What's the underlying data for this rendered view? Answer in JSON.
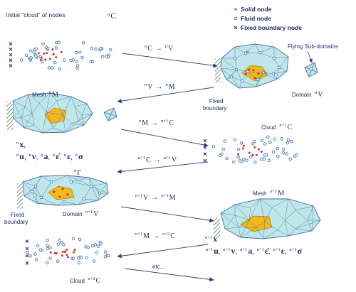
{
  "colors": {
    "background": "#ffffff",
    "fluid_node": "#4a78a8",
    "solid_node": "#c0392b",
    "fixed_node": "#33406a",
    "mesh_fill": "#bfe7ea",
    "mesh_edge": "#4a6fa0",
    "solid_fill": "#f2b81c",
    "arrow": "#2e3f7a",
    "text": "#1a2a5a"
  },
  "legend": {
    "solid": "Solid node",
    "fluid": "Fluid node",
    "fixed": "Fixed boundary node"
  },
  "labels": {
    "initial_cloud": "Initial \"cloud\" of nodes",
    "flying": "Flying Sub-domains",
    "fixed_boundary_1": "Fixed\nboundary",
    "fixed_boundary_2": "Fixed\nboundary",
    "domain": "Domain",
    "mesh": "Mesh",
    "cloud": "Cloud",
    "etc": "etc...",
    "n": "n",
    "n1": "n+1",
    "n2": "n+2"
  },
  "symbols": {
    "C": "C",
    "V": "V",
    "M": "M",
    "Gamma": "Γ",
    "x": "x",
    "u": "u",
    "v": "v",
    "a": "a",
    "epsdot": "ε̇",
    "eps": "ε",
    "sigma": "σ",
    "arrow": "→",
    "comma": ","
  },
  "transitions": [
    {
      "from": "nC",
      "to": "nV"
    },
    {
      "from": "nV",
      "to": "nM"
    },
    {
      "from": "nM",
      "to": "n+1C"
    },
    {
      "from": "n+1C",
      "to": "n+1V"
    },
    {
      "from": "n+1V",
      "to": "n+1M"
    },
    {
      "from": "n+1M",
      "to": "n+2C"
    }
  ]
}
